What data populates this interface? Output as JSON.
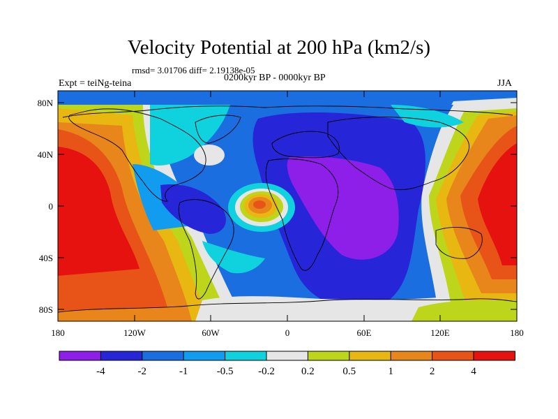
{
  "title": "Velocity Potential at 200 hPa (km2/s)",
  "stats": "rmsd= 3.01706 diff= 2.19138e-05",
  "experiment": "Expt = teiNg-teina",
  "period": "0200kyr BP - 0000kyr BP",
  "season": "JJA",
  "map": {
    "y_ticks": [
      "80N",
      "40N",
      "0",
      "40S",
      "80S"
    ],
    "x_ticks": [
      "180",
      "120W",
      "60W",
      "0",
      "60E",
      "120E",
      "180"
    ]
  },
  "colorbar": {
    "labels": [
      "-4",
      "-2",
      "-1",
      "-0.5",
      "-0.2",
      "0.2",
      "0.5",
      "1",
      "2",
      "4"
    ],
    "colors": [
      "#8e1fe8",
      "#2626d8",
      "#1a6ee0",
      "#129cf0",
      "#10d2de",
      "#e6e6e6",
      "#bdd61b",
      "#e8b711",
      "#e8861b",
      "#e85418",
      "#e6120f"
    ]
  },
  "colors": {
    "strong_negative": "#8e1fe8",
    "strong_positive": "#e6120f",
    "neutral": "#e6e6e6"
  }
}
